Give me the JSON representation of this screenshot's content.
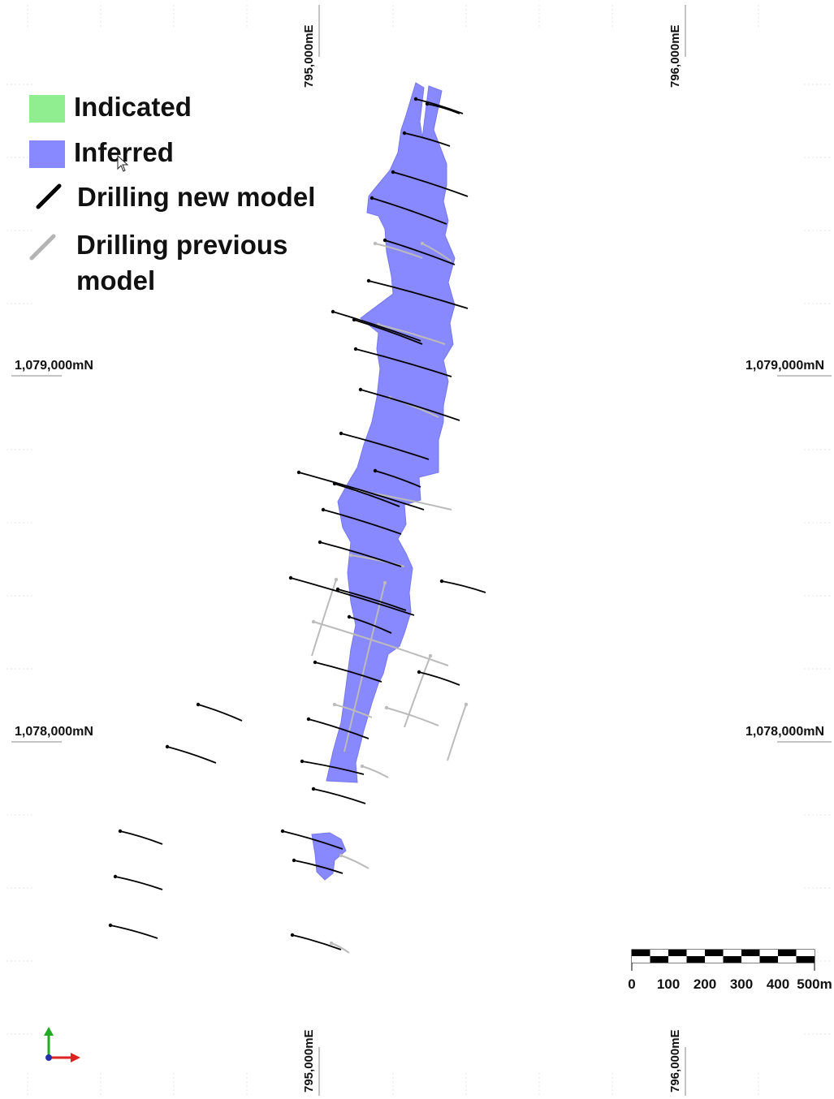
{
  "legend": {
    "indicated": {
      "label": "Indicated",
      "color": "#90ee90"
    },
    "inferred": {
      "label": "Inferred",
      "color": "#8888ff"
    },
    "drilling_new": {
      "label": "Drilling new model",
      "color": "#000000"
    },
    "drilling_previous": {
      "label_line1": "Drilling previous",
      "label_line2": "model",
      "color": "#bbbbbb"
    }
  },
  "coordinates": {
    "easting_left": "795,000mE",
    "easting_right": "796,000mE",
    "northing_upper": "1,079,000mN",
    "northing_lower": "1,078,000mN"
  },
  "scale_bar": {
    "labels": [
      "0",
      "100",
      "200",
      "300",
      "400",
      "500m"
    ]
  },
  "orientation_axes": {
    "x_color": "#dd2222",
    "y_color": "#22aa22",
    "z_color": "#2233aa"
  }
}
